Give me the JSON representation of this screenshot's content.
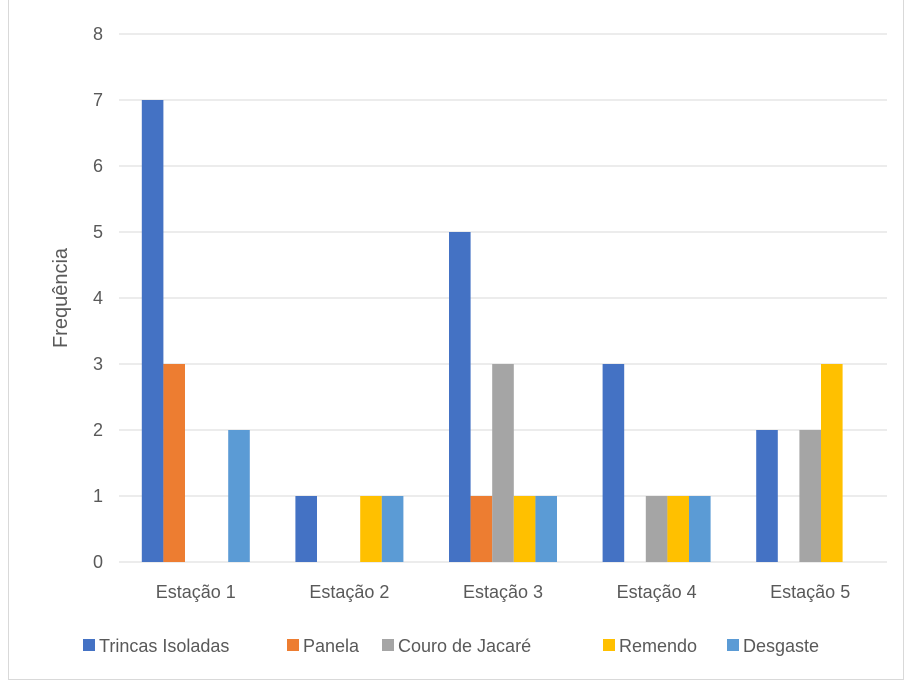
{
  "chart_data": {
    "type": "bar",
    "title": "",
    "xlabel": "",
    "ylabel": "Frequência",
    "ylim": [
      0,
      8
    ],
    "yticks": [
      0,
      1,
      2,
      3,
      4,
      5,
      6,
      7,
      8
    ],
    "grid": true,
    "legend_position": "bottom",
    "categories": [
      "Estação 1",
      "Estação 2",
      "Estação 3",
      "Estação 4",
      "Estação 5"
    ],
    "series": [
      {
        "name": "Trincas Isoladas",
        "color": "#4472C4",
        "values": [
          7,
          1,
          5,
          3,
          2
        ]
      },
      {
        "name": "Panela",
        "color": "#ED7D31",
        "values": [
          3,
          0,
          1,
          0,
          0
        ]
      },
      {
        "name": "Couro de Jacaré",
        "color": "#A5A5A5",
        "values": [
          0,
          0,
          3,
          1,
          2
        ]
      },
      {
        "name": "Remendo",
        "color": "#FFC000",
        "values": [
          0,
          1,
          1,
          1,
          3
        ]
      },
      {
        "name": "Desgaste",
        "color": "#5B9BD5",
        "values": [
          2,
          1,
          1,
          1,
          0
        ]
      }
    ]
  }
}
